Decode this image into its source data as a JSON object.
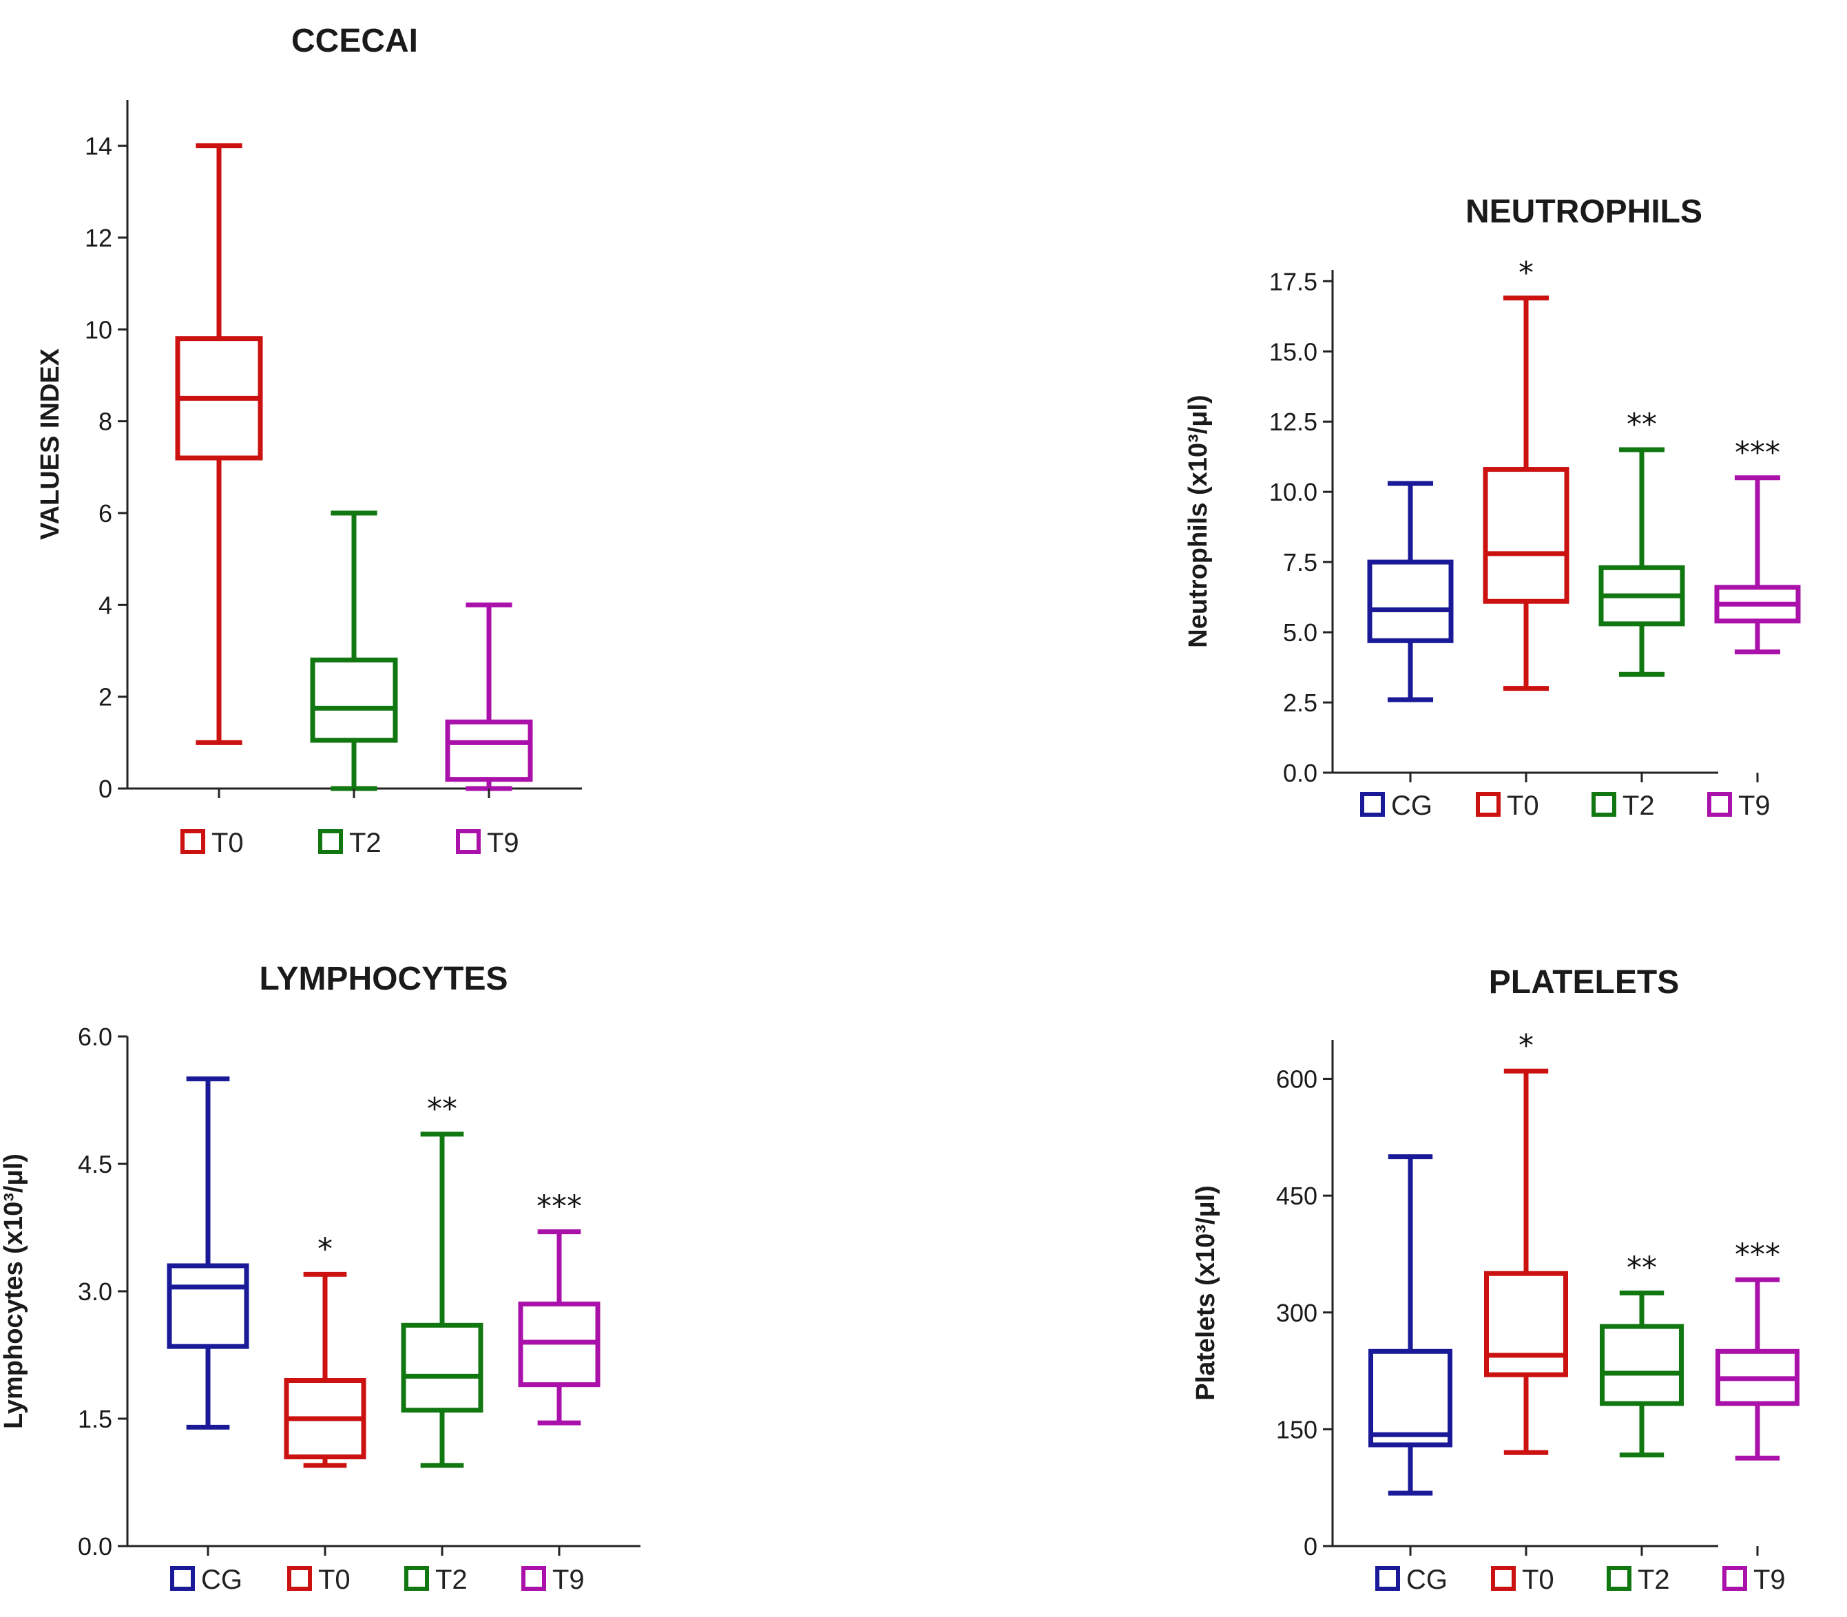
{
  "colors": {
    "CG": "#1a1a99",
    "T0": "#cc1111",
    "T2": "#117711",
    "T9": "#aa11aa"
  },
  "chart_data": [
    {
      "id": "ccecai",
      "type": "boxplot",
      "title": "CCECAI",
      "ylabel": "VALUES INDEX",
      "ylim": [
        0,
        15
      ],
      "yticks": [
        0,
        2,
        4,
        6,
        8,
        10,
        12,
        14
      ],
      "ytick_labels": [
        "0",
        "2",
        "4",
        "6",
        "8",
        "10",
        "12",
        "14"
      ],
      "groups": [
        {
          "name": "T0",
          "min": 1,
          "q1": 7.2,
          "median": 8.5,
          "q3": 9.8,
          "max": 14,
          "sig": ""
        },
        {
          "name": "T2",
          "min": 0,
          "q1": 1.05,
          "median": 1.75,
          "q3": 2.8,
          "max": 6,
          "sig": ""
        },
        {
          "name": "T9",
          "min": 0,
          "q1": 0.2,
          "median": 1.0,
          "q3": 1.45,
          "max": 4,
          "sig": ""
        }
      ],
      "legend": [
        "T0",
        "T2",
        "T9"
      ]
    },
    {
      "id": "neutrophils",
      "type": "boxplot",
      "title": "NEUTROPHILS",
      "ylabel": "Neutrophils (x10³/μl)",
      "ylim": [
        0,
        17.9
      ],
      "yticks": [
        0,
        2.5,
        5,
        7.5,
        10,
        12.5,
        15,
        17.5
      ],
      "ytick_labels": [
        "0.0",
        "2.5",
        "5.0",
        "7.5",
        "10.0",
        "12.5",
        "15.0",
        "17.5"
      ],
      "groups": [
        {
          "name": "CG",
          "min": 2.6,
          "q1": 4.7,
          "median": 5.8,
          "q3": 7.5,
          "max": 10.3,
          "sig": ""
        },
        {
          "name": "T0",
          "min": 3.0,
          "q1": 6.1,
          "median": 7.8,
          "q3": 10.8,
          "max": 16.9,
          "sig": "*"
        },
        {
          "name": "T2",
          "min": 3.5,
          "q1": 5.3,
          "median": 6.3,
          "q3": 7.3,
          "max": 11.5,
          "sig": "**"
        },
        {
          "name": "T9",
          "min": 4.3,
          "q1": 5.4,
          "median": 6.0,
          "q3": 6.6,
          "max": 10.5,
          "sig": "***"
        }
      ],
      "legend": [
        "CG",
        "T0",
        "T2",
        "T9"
      ]
    },
    {
      "id": "lymphocytes",
      "type": "boxplot",
      "title": "LYMPHOCYTES",
      "ylabel": "Lymphocytes (x10³/μl)",
      "ylim": [
        0,
        6
      ],
      "yticks": [
        0,
        1.5,
        3,
        4.5,
        6
      ],
      "ytick_labels": [
        "0.0",
        "1.5",
        "3.0",
        "4.5",
        "6.0"
      ],
      "groups": [
        {
          "name": "CG",
          "min": 1.4,
          "q1": 2.35,
          "median": 3.05,
          "q3": 3.3,
          "max": 5.5,
          "sig": ""
        },
        {
          "name": "T0",
          "min": 0.95,
          "q1": 1.05,
          "median": 1.5,
          "q3": 1.95,
          "max": 3.2,
          "sig": "*"
        },
        {
          "name": "T2",
          "min": 0.95,
          "q1": 1.6,
          "median": 2.0,
          "q3": 2.6,
          "max": 4.85,
          "sig": "**"
        },
        {
          "name": "T9",
          "min": 1.45,
          "q1": 1.9,
          "median": 2.4,
          "q3": 2.85,
          "max": 3.7,
          "sig": "***"
        }
      ],
      "legend": [
        "CG",
        "T0",
        "T2",
        "T9"
      ]
    },
    {
      "id": "platelets",
      "type": "boxplot",
      "title": "PLATELETS",
      "ylabel": "Platelets (x10³/μl)",
      "ylim": [
        0,
        650
      ],
      "yticks": [
        0,
        150,
        300,
        450,
        600
      ],
      "ytick_labels": [
        "0",
        "150",
        "300",
        "450",
        "600"
      ],
      "groups": [
        {
          "name": "CG",
          "min": 68,
          "q1": 130,
          "median": 143,
          "q3": 250,
          "max": 500,
          "sig": ""
        },
        {
          "name": "T0",
          "min": 120,
          "q1": 220,
          "median": 245,
          "q3": 350,
          "max": 610,
          "sig": "*"
        },
        {
          "name": "T2",
          "min": 117,
          "q1": 183,
          "median": 222,
          "q3": 282,
          "max": 325,
          "sig": "**"
        },
        {
          "name": "T9",
          "min": 113,
          "q1": 183,
          "median": 215,
          "q3": 250,
          "max": 342,
          "sig": "***"
        }
      ],
      "legend": [
        "CG",
        "T0",
        "T2",
        "T9"
      ]
    }
  ]
}
